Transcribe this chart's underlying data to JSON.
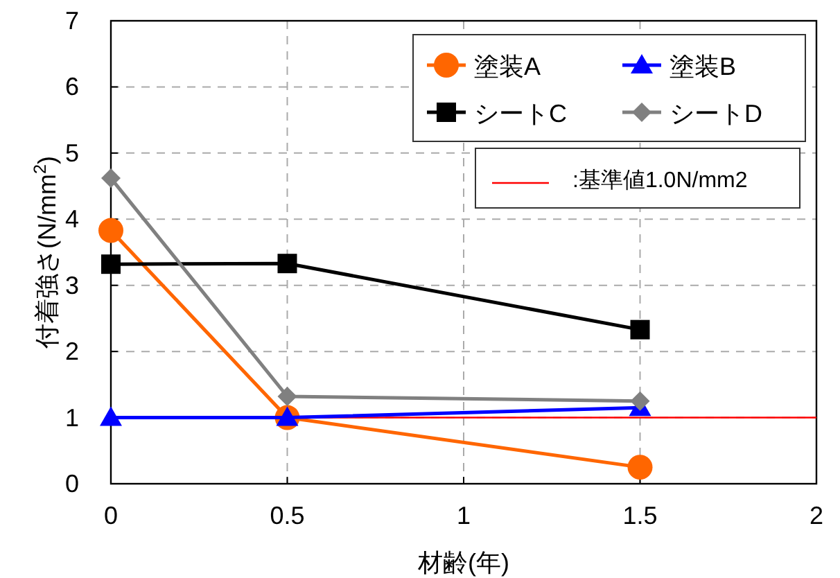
{
  "chart_data": {
    "type": "line",
    "xlabel": "材齢(年)",
    "ylabel": "付着強さ(N/mm$^{2}$)",
    "x": [
      0,
      0.5,
      1.5
    ],
    "series": [
      {
        "name": "塗装A",
        "color": "#ff6600",
        "marker": "circle",
        "values": [
          3.83,
          1.0,
          0.25
        ]
      },
      {
        "name": "塗装B",
        "color": "#0000ff",
        "marker": "triangle",
        "values": [
          1.0,
          1.0,
          1.15
        ]
      },
      {
        "name": "シートC",
        "color": "#000000",
        "marker": "square",
        "values": [
          3.32,
          3.33,
          2.33
        ]
      },
      {
        "name": "シートD",
        "color": "#808080",
        "marker": "diamond",
        "values": [
          4.62,
          1.32,
          1.25
        ]
      }
    ],
    "ref_lines": [
      {
        "axis": "y",
        "value": 1.0,
        "label": ":基準値1.0N/mm2",
        "color": "#ff0000",
        "line_style": "solid"
      }
    ],
    "xlim": [
      0,
      2
    ],
    "xticks": [
      0,
      0.5,
      1,
      1.5,
      2
    ],
    "ylim": [
      0,
      7
    ],
    "yticks": [
      0,
      1,
      2,
      3,
      4,
      5,
      6,
      7
    ],
    "grid": true,
    "legend": "top right",
    "line_style": "solid"
  }
}
